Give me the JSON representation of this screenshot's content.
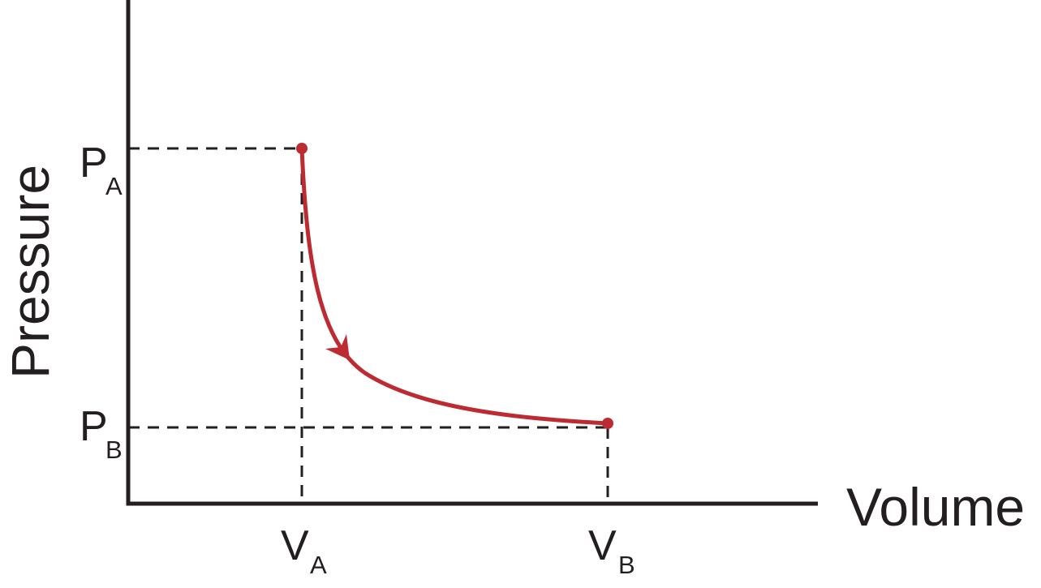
{
  "axes": {
    "y_label": "Pressure",
    "x_label": "Volume"
  },
  "points": [
    {
      "pressure": {
        "main": "P",
        "sub": "A"
      },
      "volume": {
        "main": "V",
        "sub": "A"
      }
    },
    {
      "pressure": {
        "main": "P",
        "sub": "B"
      },
      "volume": {
        "main": "V",
        "sub": "B"
      }
    }
  ]
}
